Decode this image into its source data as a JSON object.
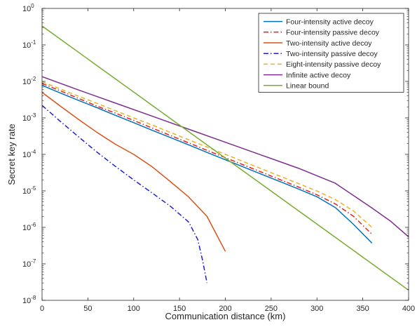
{
  "chart_data": {
    "type": "line",
    "xlabel": "Communication distance (km)",
    "ylabel": "Secret key rate",
    "xlim": [
      0,
      400
    ],
    "ylim": [
      1e-08,
      1
    ],
    "y_scale": "log",
    "grid": false,
    "legend_position": "top-right",
    "x_ticks": [
      {
        "value": 0,
        "label": "0"
      },
      {
        "value": 50,
        "label": "50"
      },
      {
        "value": 100,
        "label": "100"
      },
      {
        "value": 150,
        "label": "150"
      },
      {
        "value": 200,
        "label": "200"
      },
      {
        "value": 250,
        "label": "250"
      },
      {
        "value": 300,
        "label": "300"
      },
      {
        "value": 350,
        "label": "350"
      },
      {
        "value": 400,
        "label": "400"
      }
    ],
    "y_ticks": [
      {
        "value": 1,
        "base": "10",
        "exp": "0"
      },
      {
        "value": 0.1,
        "base": "10",
        "exp": "-1"
      },
      {
        "value": 0.01,
        "base": "10",
        "exp": "-2"
      },
      {
        "value": 0.001,
        "base": "10",
        "exp": "-3"
      },
      {
        "value": 0.0001,
        "base": "10",
        "exp": "-4"
      },
      {
        "value": 1e-05,
        "base": "10",
        "exp": "-5"
      },
      {
        "value": 1e-06,
        "base": "10",
        "exp": "-6"
      },
      {
        "value": 1e-07,
        "base": "10",
        "exp": "-7"
      },
      {
        "value": 1e-08,
        "base": "10",
        "exp": "-8"
      }
    ],
    "series": [
      {
        "name": "Four-intensity active decoy",
        "color": "#0072BD",
        "dash": "solid",
        "points": [
          [
            0,
            0.0078
          ],
          [
            20,
            0.0048
          ],
          [
            40,
            0.003
          ],
          [
            60,
            0.0019
          ],
          [
            80,
            0.00118
          ],
          [
            100,
            0.00074
          ],
          [
            120,
            0.00046
          ],
          [
            140,
            0.00029
          ],
          [
            160,
            0.000182
          ],
          [
            180,
            0.000113
          ],
          [
            200,
            7.12e-05
          ],
          [
            220,
            4.5e-05
          ],
          [
            240,
            2.82e-05
          ],
          [
            260,
            1.78e-05
          ],
          [
            280,
            1.12e-05
          ],
          [
            300,
            6.9e-06
          ],
          [
            320,
            3.5e-06
          ],
          [
            340,
            1.2e-06
          ],
          [
            360,
            3.7e-07
          ]
        ]
      },
      {
        "name": "Four-intensity passive decoy",
        "color": "#E8221F",
        "dash": "dashdot",
        "points": [
          [
            0,
            0.0088
          ],
          [
            20,
            0.0055
          ],
          [
            40,
            0.0034
          ],
          [
            60,
            0.0021
          ],
          [
            80,
            0.00135
          ],
          [
            100,
            0.00085
          ],
          [
            120,
            0.00053
          ],
          [
            140,
            0.00033
          ],
          [
            160,
            0.000207
          ],
          [
            180,
            0.000129
          ],
          [
            200,
            8.12e-05
          ],
          [
            220,
            5.12e-05
          ],
          [
            240,
            3.22e-05
          ],
          [
            260,
            2.02e-05
          ],
          [
            280,
            1.27e-05
          ],
          [
            300,
            7.8e-06
          ],
          [
            320,
            4.4e-06
          ],
          [
            340,
            2e-06
          ],
          [
            360,
            6.5e-07
          ]
        ]
      },
      {
        "name": "Two-intensity active decoy",
        "color": "#D95319",
        "dash": "solid",
        "points": [
          [
            0,
            0.005
          ],
          [
            20,
            0.0021
          ],
          [
            40,
            0.0009
          ],
          [
            60,
            0.0004
          ],
          [
            80,
            0.00019
          ],
          [
            100,
            0.0001
          ],
          [
            120,
            4.6e-05
          ],
          [
            140,
            1.8e-05
          ],
          [
            160,
            6.8e-06
          ],
          [
            180,
            2e-06
          ],
          [
            200,
            2.2e-07
          ]
        ]
      },
      {
        "name": "Two-intensity passive decoy",
        "color": "#1F1FD0",
        "dash": "dashdot",
        "points": [
          [
            0,
            0.0022
          ],
          [
            20,
            0.0008
          ],
          [
            40,
            0.0003
          ],
          [
            60,
            0.000115
          ],
          [
            80,
            4.7e-05
          ],
          [
            100,
            2e-05
          ],
          [
            120,
            8.8e-06
          ],
          [
            140,
            3.8e-06
          ],
          [
            160,
            1.4e-06
          ],
          [
            170,
            4.6e-07
          ],
          [
            175,
            1.3e-07
          ],
          [
            180,
            3e-08
          ]
        ]
      },
      {
        "name": "Eight-intensity passive decoy",
        "color": "#EDB120",
        "dash": "dash",
        "points": [
          [
            0,
            0.0098
          ],
          [
            20,
            0.0062
          ],
          [
            40,
            0.0039
          ],
          [
            60,
            0.0025
          ],
          [
            80,
            0.00158
          ],
          [
            100,
            0.001
          ],
          [
            120,
            0.00064
          ],
          [
            140,
            0.0004
          ],
          [
            160,
            0.000252
          ],
          [
            180,
            0.000159
          ],
          [
            200,
            0.0001
          ],
          [
            220,
            6.3e-05
          ],
          [
            240,
            3.97e-05
          ],
          [
            260,
            2.51e-05
          ],
          [
            280,
            1.58e-05
          ],
          [
            300,
            9.9e-06
          ],
          [
            320,
            5.8e-06
          ],
          [
            340,
            2.8e-06
          ],
          [
            360,
            1e-06
          ]
        ]
      },
      {
        "name": "Infinite active decoy",
        "color": "#7E2F8E",
        "dash": "solid",
        "points": [
          [
            0,
            0.0135
          ],
          [
            40,
            0.0058
          ],
          [
            80,
            0.00255
          ],
          [
            120,
            0.00112
          ],
          [
            160,
            0.00049
          ],
          [
            200,
            0.000215
          ],
          [
            240,
            9.45e-05
          ],
          [
            280,
            4.15e-05
          ],
          [
            320,
            1.62e-05
          ],
          [
            360,
            3.4e-06
          ],
          [
            380,
            1.5e-06
          ],
          [
            400,
            5.5e-07
          ]
        ]
      },
      {
        "name": "Linear bound",
        "color": "#77AC30",
        "dash": "solid",
        "points": [
          [
            0,
            0.33
          ],
          [
            400,
            1.9e-08
          ]
        ]
      }
    ]
  }
}
